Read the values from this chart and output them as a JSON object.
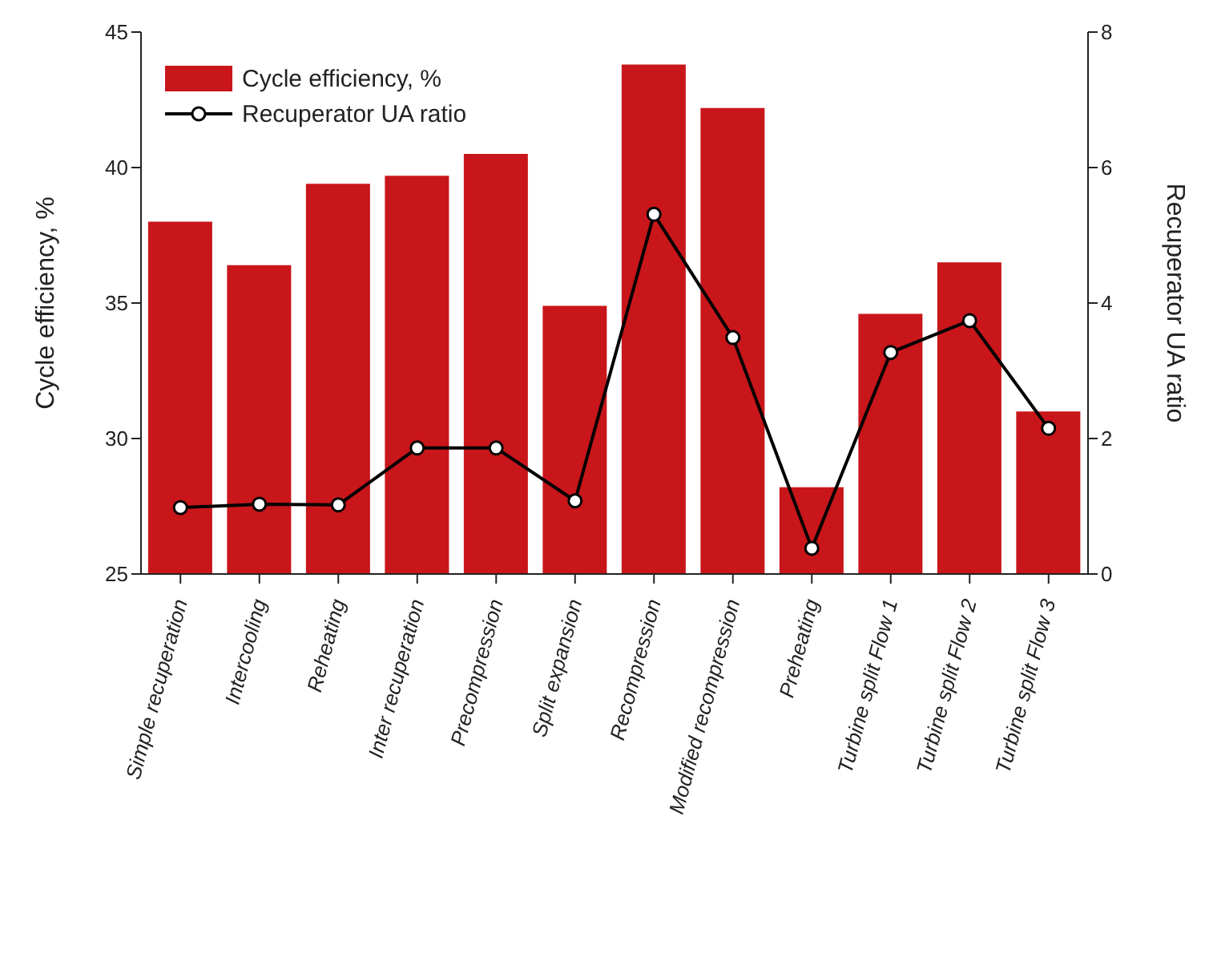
{
  "chart_data": {
    "type": "bar",
    "categories": [
      "Simple  recuperation",
      "Intercooling",
      "Reheating",
      "Inter recuperation",
      "Precompression",
      "Split expansion",
      "Recompression",
      "Modified recompression",
      "Preheating",
      "Turbine split Flow 1",
      "Turbine split Flow 2",
      "Turbine split Flow 3"
    ],
    "series": [
      {
        "name": "Cycle efficiency, %",
        "color": "#c8161b",
        "values": [
          38.0,
          36.4,
          39.4,
          39.7,
          40.5,
          34.9,
          43.8,
          42.2,
          28.2,
          34.6,
          36.5,
          31.0
        ]
      },
      {
        "name": "Recuperator UA ratio",
        "type": "line",
        "axis": "y2",
        "color": "#000000",
        "marker": "circle",
        "values": [
          0.98,
          1.03,
          1.02,
          1.86,
          1.86,
          1.08,
          5.31,
          3.49,
          0.38,
          3.27,
          3.74,
          2.15
        ]
      }
    ],
    "ylabel": "Cycle efficiency, %",
    "y2label": "Recuperator UA ratio",
    "ylim": [
      25,
      45
    ],
    "yticks": [
      25,
      30,
      35,
      40,
      45
    ],
    "y2lim": [
      0,
      8
    ],
    "y2ticks": [
      0,
      2,
      4,
      6,
      8
    ],
    "grid": false,
    "legend": "top left"
  }
}
